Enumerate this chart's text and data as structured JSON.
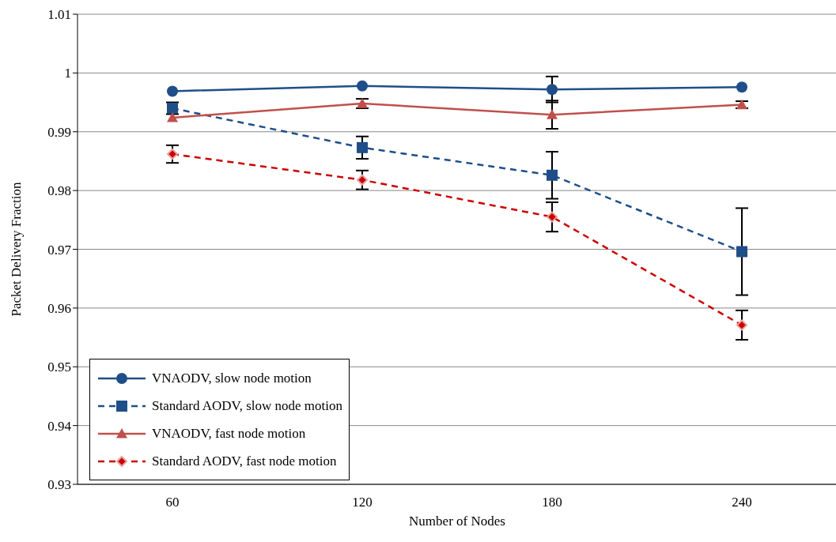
{
  "chart_data": {
    "type": "line",
    "xlabel": "Number of Nodes",
    "ylabel": "Packet Delivery Fraction",
    "categories": [
      "60",
      "120",
      "180",
      "240"
    ],
    "series": [
      {
        "name": "VNAODV, slow node motion",
        "color": "#1f4e89",
        "marker": "circle",
        "line_style": "solid",
        "values": [
          0.9969,
          0.9978,
          0.9972,
          0.9976
        ],
        "errors": [
          null,
          null,
          0.0022,
          null
        ]
      },
      {
        "name": "Standard AODV, slow node motion",
        "color": "#1f4e89",
        "marker": "square",
        "line_style": "dashed",
        "values": [
          0.994,
          0.9873,
          0.9826,
          0.9696
        ],
        "errors": [
          0.001,
          0.0019,
          0.004,
          0.0074
        ]
      },
      {
        "name": "VNAODV, fast node motion",
        "color": "#c0504d",
        "marker": "triangle",
        "line_style": "solid",
        "values": [
          0.9924,
          0.9948,
          0.9929,
          0.9946
        ],
        "errors": [
          null,
          0.0008,
          0.0024,
          0.0006
        ]
      },
      {
        "name": "Standard AODV, fast node motion",
        "color": "#cc0000",
        "marker": "diamond",
        "line_style": "dashed",
        "values": [
          0.9862,
          0.9818,
          0.9755,
          0.9571
        ],
        "errors": [
          0.0015,
          0.0016,
          0.0025,
          0.0025
        ]
      }
    ],
    "ylim": [
      0.93,
      1.01
    ],
    "yticks": [
      0.93,
      0.94,
      0.95,
      0.96,
      0.97,
      0.98,
      0.99,
      1,
      1.01
    ],
    "grid": "y",
    "legend": "bottom left"
  }
}
